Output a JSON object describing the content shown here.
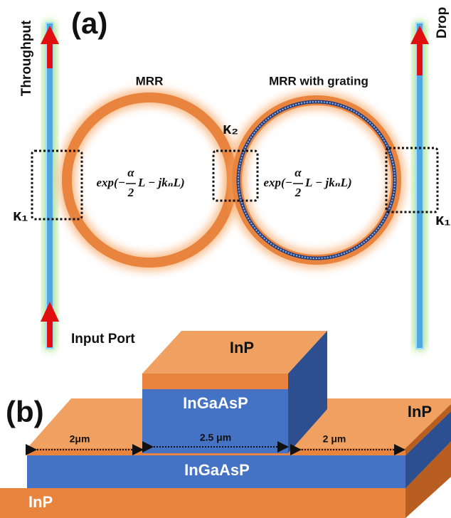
{
  "panel_a": {
    "label": "(a)",
    "throughput": "Throughput",
    "drop": "Drop",
    "input_port": "Input Port",
    "rings": [
      {
        "label": "MRR",
        "transfer": {
          "prefix": "exp(−",
          "numerator": "α",
          "denominator": "2",
          "suffix": "L − jkₙL)"
        }
      },
      {
        "label": "MRR with grating",
        "transfer": {
          "prefix": "exp(−",
          "numerator": "α",
          "denominator": "2",
          "suffix": "L − jkₙL)"
        }
      }
    ],
    "couplers": [
      "κ₁",
      "κ₂",
      "κ₁"
    ]
  },
  "panel_b": {
    "label": "(b)",
    "ridge_cap": "InP",
    "ridge_core": "InGaAsP",
    "upper_cladding": "InP",
    "guide_layer": "InGaAsP",
    "substrate": "InP",
    "dimensions": [
      "2μm",
      "2.5 μm",
      "2 μm"
    ]
  }
}
